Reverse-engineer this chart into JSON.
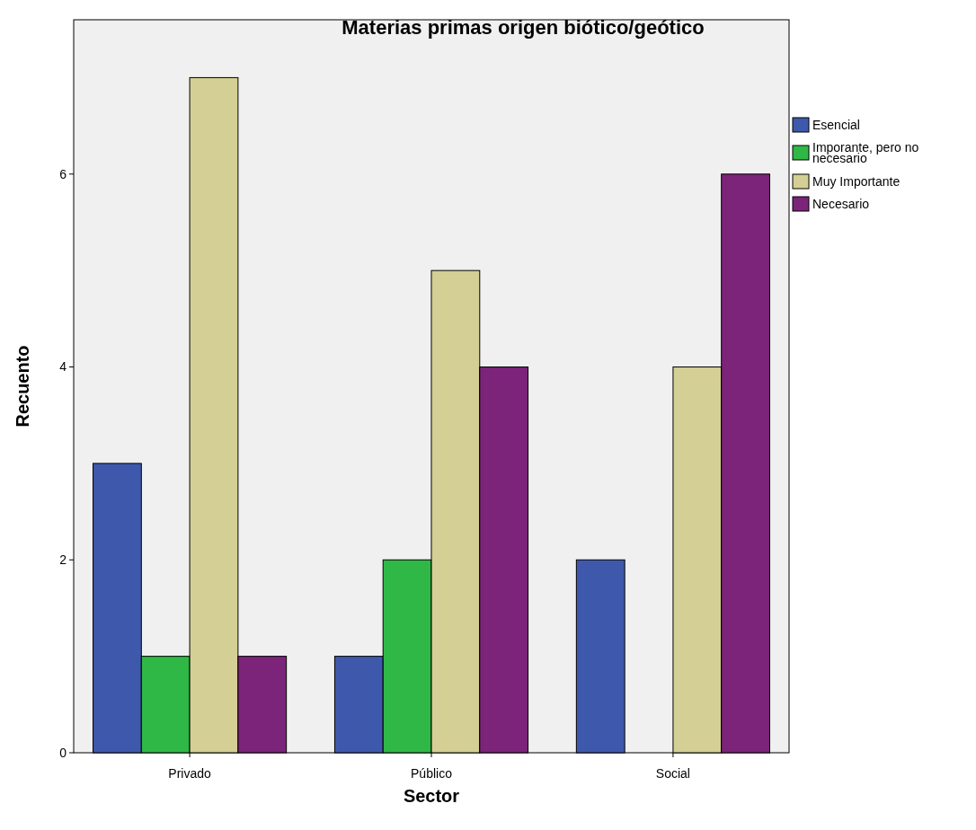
{
  "chart_data": {
    "type": "bar",
    "title": "Materias primas origen biótico/geótico",
    "xlabel": "Sector",
    "ylabel": "Recuento",
    "categories": [
      "Privado",
      "Público",
      "Social"
    ],
    "series": [
      {
        "name": "Esencial",
        "color": "#3e58ac",
        "values": [
          3,
          1,
          2
        ]
      },
      {
        "name": "Imporante, pero no necesario",
        "color": "#2fb845",
        "values": [
          1,
          2,
          null
        ]
      },
      {
        "name": "Muy Importante",
        "color": "#d4cf94",
        "values": [
          7,
          5,
          4
        ]
      },
      {
        "name": "Necesario",
        "color": "#7b2479",
        "values": [
          1,
          4,
          6
        ]
      }
    ],
    "ylim": [
      0,
      7.6
    ],
    "yticks": [
      0,
      2,
      4,
      6
    ],
    "grid": false,
    "legend": "right"
  }
}
